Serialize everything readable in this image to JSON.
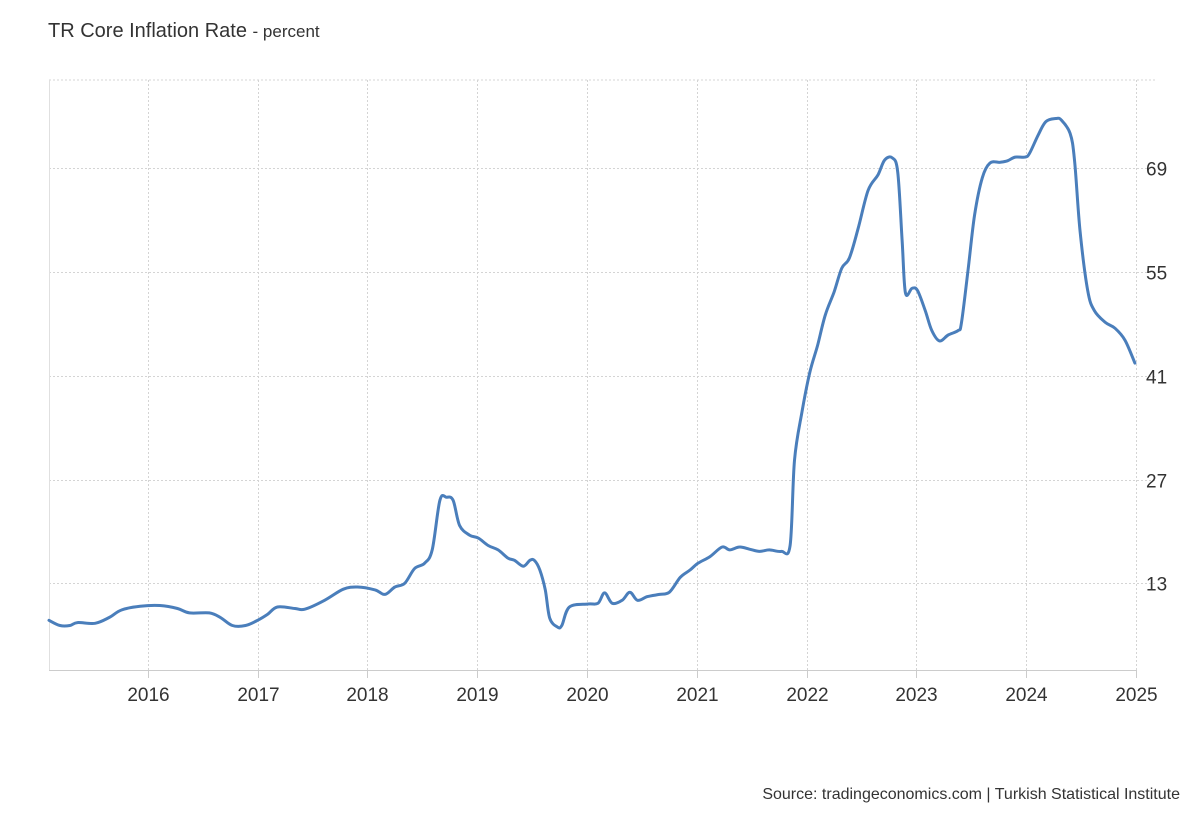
{
  "chart_data": {
    "type": "line",
    "title": "TR Core Inflation Rate",
    "subtitle": "- percent",
    "source": "Source: tradingeconomics.com | Turkish Statistical Institute",
    "xlabel": "",
    "ylabel": "",
    "xlim": [
      2015.1,
      2025.0
    ],
    "ylim": [
      1.3,
      80.9
    ],
    "x_ticks": [
      2016,
      2017,
      2018,
      2019,
      2020,
      2021,
      2022,
      2023,
      2024,
      2025
    ],
    "y_ticks": [
      13,
      27,
      41,
      55,
      69
    ],
    "y_axis_side": "right",
    "grid": true,
    "legend": "none",
    "line_color": "#4a7ebb",
    "series": [
      {
        "x": [
          2015.1,
          2015.2,
          2015.29,
          2015.36,
          2015.52,
          2015.65,
          2015.76,
          2015.93,
          2016.11,
          2016.27,
          2016.38,
          2016.56,
          2016.66,
          2016.77,
          2016.89,
          2017.0,
          2017.09,
          2017.18,
          2017.34,
          2017.43,
          2017.61,
          2017.78,
          2017.91,
          2018.07,
          2018.16,
          2018.25,
          2018.34,
          2018.43,
          2018.52,
          2018.59,
          2018.66,
          2018.72,
          2018.78,
          2018.84,
          2018.93,
          2019.01,
          2019.1,
          2019.19,
          2019.28,
          2019.34,
          2019.42,
          2019.48,
          2019.52,
          2019.57,
          2019.62,
          2019.66,
          2019.73,
          2019.77,
          2019.84,
          2020.01,
          2020.1,
          2020.16,
          2020.23,
          2020.32,
          2020.39,
          2020.46,
          2020.55,
          2020.66,
          2020.75,
          2020.85,
          2020.94,
          2021.01,
          2021.12,
          2021.23,
          2021.3,
          2021.39,
          2021.48,
          2021.57,
          2021.66,
          2021.77,
          2021.85,
          2021.89,
          2021.96,
          2022.03,
          2022.1,
          2022.17,
          2022.25,
          2022.32,
          2022.39,
          2022.47,
          2022.56,
          2022.65,
          2022.71,
          2022.78,
          2022.83,
          2022.87,
          2022.9,
          2022.96,
          2023.01,
          2023.08,
          2023.14,
          2023.21,
          2023.29,
          2023.38,
          2023.41,
          2023.47,
          2023.53,
          2023.6,
          2023.67,
          2023.76,
          2023.83,
          2023.9,
          2023.99,
          2024.03,
          2024.11,
          2024.18,
          2024.27,
          2024.32,
          2024.4,
          2024.44,
          2024.49,
          2024.56,
          2024.62,
          2024.72,
          2024.81,
          2024.9,
          2024.99
        ],
        "y": [
          8.0,
          7.3,
          7.3,
          7.7,
          7.6,
          8.4,
          9.4,
          9.9,
          10.0,
          9.6,
          9.0,
          9.0,
          8.4,
          7.3,
          7.3,
          8.0,
          8.8,
          9.8,
          9.6,
          9.5,
          10.7,
          12.2,
          12.5,
          12.1,
          11.5,
          12.5,
          13.0,
          15.0,
          15.7,
          17.5,
          24.2,
          24.6,
          24.2,
          20.8,
          19.5,
          19.1,
          18.1,
          17.5,
          16.4,
          16.1,
          15.3,
          16.1,
          16.1,
          14.8,
          12.1,
          8.3,
          7.1,
          7.3,
          9.8,
          10.2,
          10.3,
          11.7,
          10.3,
          10.7,
          11.8,
          10.7,
          11.2,
          11.5,
          11.8,
          13.8,
          14.8,
          15.7,
          16.6,
          17.9,
          17.5,
          17.9,
          17.6,
          17.3,
          17.5,
          17.3,
          18.1,
          29.6,
          36.3,
          41.5,
          45.1,
          49.2,
          52.3,
          55.5,
          56.9,
          60.9,
          66.0,
          68.1,
          70.1,
          70.4,
          68.5,
          59.3,
          52.2,
          52.8,
          52.5,
          49.8,
          47.1,
          45.7,
          46.5,
          47.1,
          48.1,
          55.2,
          62.7,
          67.7,
          69.7,
          69.8,
          70.0,
          70.5,
          70.5,
          71.0,
          73.5,
          75.3,
          75.7,
          75.5,
          73.7,
          70.1,
          60.6,
          52.5,
          49.8,
          48.2,
          47.4,
          45.8,
          42.7
        ]
      }
    ]
  }
}
